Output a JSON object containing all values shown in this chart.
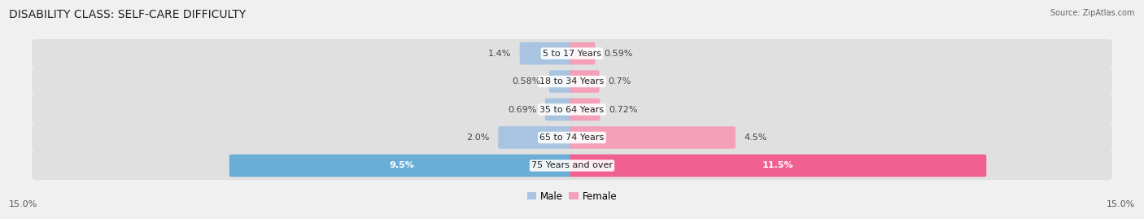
{
  "title": "DISABILITY CLASS: SELF-CARE DIFFICULTY",
  "source": "Source: ZipAtlas.com",
  "categories": [
    "5 to 17 Years",
    "18 to 34 Years",
    "35 to 64 Years",
    "65 to 74 Years",
    "75 Years and over"
  ],
  "male_values": [
    1.4,
    0.58,
    0.69,
    2.0,
    9.5
  ],
  "female_values": [
    0.59,
    0.7,
    0.72,
    4.5,
    11.5
  ],
  "male_labels": [
    "1.4%",
    "0.58%",
    "0.69%",
    "2.0%",
    "9.5%"
  ],
  "female_labels": [
    "0.59%",
    "0.7%",
    "0.72%",
    "4.5%",
    "11.5%"
  ],
  "male_colors": [
    "#a8c4e0",
    "#a8c4e0",
    "#a8c4e0",
    "#a8c4e0",
    "#6aaed6"
  ],
  "female_colors": [
    "#f4a0b8",
    "#f4a0b8",
    "#f4a0b8",
    "#f4a0b8",
    "#f06090"
  ],
  "male_label_inside": [
    false,
    false,
    false,
    false,
    true
  ],
  "female_label_inside": [
    false,
    false,
    false,
    false,
    true
  ],
  "axis_max": 15.0,
  "axis_label_left": "15.0%",
  "axis_label_right": "15.0%",
  "bg_color": "#f0f0f0",
  "row_bg_color": "#e4e4e4",
  "row_bg_last_color": "#d8d8d8",
  "legend_male": "Male",
  "legend_female": "Female",
  "title_fontsize": 10,
  "label_fontsize": 8,
  "category_fontsize": 8
}
